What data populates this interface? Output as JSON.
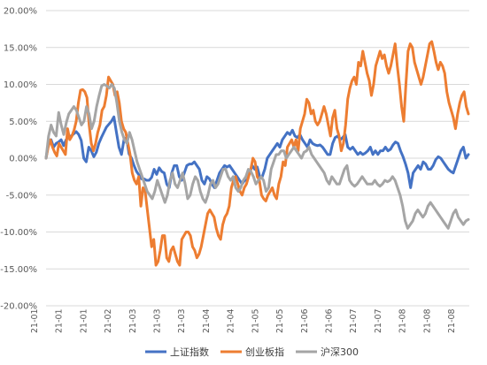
{
  "chart_data": {
    "type": "line",
    "ylim": [
      -20,
      20
    ],
    "y_ticks": [
      20,
      15,
      10,
      5,
      0,
      -5,
      -10,
      -15,
      -20
    ],
    "y_tick_labels": [
      "20.00%",
      "15.00%",
      "10.00%",
      "5.00%",
      "0.00%",
      "-5.00%",
      "-10.00%",
      "-15.00%",
      "-20.00%"
    ],
    "x_tick_labels": [
      "21-01",
      "21-01",
      "21-01",
      "21-02",
      "21-03",
      "21-03",
      "21-03",
      "21-04",
      "21-04",
      "21-05",
      "21-05",
      "21-06",
      "21-06",
      "21-07",
      "21-07",
      "21-08",
      "21-08",
      "21-08"
    ],
    "grid": true,
    "legend_position": "bottom",
    "series": [
      {
        "name": "上证指数",
        "color": "#4472C4",
        "values": [
          0.0,
          2.0,
          2.5,
          1.5,
          2.0,
          2.2,
          2.5,
          1.7,
          2.5,
          3.0,
          3.0,
          3.3,
          3.6,
          3.2,
          2.4,
          0.0,
          -0.5,
          1.5,
          1.0,
          0.2,
          0.8,
          2.0,
          2.8,
          3.5,
          4.2,
          4.6,
          5.0,
          5.6,
          3.5,
          1.5,
          0.5,
          2.5,
          2.8,
          0.6,
          0.0,
          -1.0,
          -1.8,
          -2.3,
          -2.8,
          -2.8,
          -3.0,
          -3.0,
          -2.6,
          -1.5,
          -2.2,
          -1.3,
          -1.8,
          -2.0,
          -3.5,
          -4.0,
          -2.0,
          -1.0,
          -1.0,
          -2.5,
          -3.0,
          -2.0,
          -1.0,
          -0.8,
          -0.8,
          -0.5,
          -1.0,
          -1.5,
          -3.0,
          -3.5,
          -2.5,
          -2.8,
          -3.5,
          -4.0,
          -3.0,
          -2.0,
          -1.5,
          -1.0,
          -1.2,
          -1.0,
          -1.5,
          -2.0,
          -2.5,
          -3.0,
          -3.5,
          -3.0,
          -3.0,
          -2.0,
          -1.0,
          -1.5,
          -1.2,
          -2.5,
          -2.5,
          -1.5,
          0.0,
          0.5,
          1.0,
          1.5,
          2.0,
          1.5,
          2.5,
          3.0,
          3.5,
          3.2,
          3.8,
          3.0,
          2.8,
          3.2,
          2.5,
          2.0,
          1.5,
          2.5,
          2.0,
          1.8,
          1.7,
          1.8,
          1.5,
          1.0,
          0.5,
          0.5,
          2.0,
          2.8,
          3.0,
          2.5,
          2.8,
          3.2,
          1.5,
          1.2,
          1.5,
          1.0,
          0.5,
          0.8,
          0.5,
          0.7,
          1.0,
          1.5,
          0.5,
          1.0,
          0.5,
          1.0,
          1.0,
          1.5,
          1.0,
          1.2,
          1.8,
          2.2,
          2.0,
          1.0,
          0.2,
          -0.8,
          -2.0,
          -4.0,
          -2.0,
          -1.5,
          -1.0,
          -1.5,
          -0.5,
          -0.8,
          -1.5,
          -1.5,
          -1.0,
          -0.2,
          0.2,
          0.0,
          -0.5,
          -1.0,
          -1.5,
          -1.8,
          -2.0,
          -1.0,
          0.0,
          1.0,
          1.5,
          0.0,
          0.5
        ]
      },
      {
        "name": "创业板指",
        "color": "#ED7D31",
        "values": [
          0.0,
          1.5,
          2.5,
          1.5,
          0.8,
          0.3,
          2.0,
          1.5,
          1.0,
          0.5,
          4.0,
          2.5,
          3.0,
          3.8,
          5.0,
          7.5,
          9.2,
          9.3,
          9.0,
          8.2,
          4.5,
          2.0,
          1.0,
          2.0,
          3.5,
          4.5,
          6.5,
          7.0,
          8.5,
          11.0,
          10.5,
          10.0,
          8.5,
          9.0,
          7.5,
          5.0,
          4.0,
          3.5,
          2.0,
          0.5,
          -2.0,
          -3.0,
          -3.5,
          -2.5,
          -6.5,
          -4.0,
          -4.5,
          -7.0,
          -9.5,
          -12.0,
          -11.0,
          -14.5,
          -14.0,
          -12.5,
          -10.5,
          -10.5,
          -13.5,
          -14.0,
          -12.5,
          -12.0,
          -13.0,
          -14.0,
          -14.5,
          -11.0,
          -10.5,
          -10.0,
          -10.0,
          -10.5,
          -12.0,
          -12.5,
          -13.5,
          -13.0,
          -12.0,
          -10.5,
          -9.0,
          -7.5,
          -7.0,
          -7.5,
          -8.0,
          -9.5,
          -10.5,
          -11.0,
          -9.0,
          -8.0,
          -7.5,
          -6.5,
          -4.0,
          -3.0,
          -2.5,
          -3.5,
          -4.5,
          -5.0,
          -4.0,
          -3.5,
          -2.5,
          -1.5,
          0.0,
          -0.5,
          -2.5,
          -3.0,
          -5.0,
          -5.5,
          -5.8,
          -5.0,
          -4.5,
          -4.0,
          -5.0,
          -5.5,
          -3.5,
          -2.5,
          -0.5,
          -1.0,
          1.5,
          2.0,
          2.5,
          1.5,
          2.5,
          1.0,
          4.0,
          5.0,
          6.0,
          8.0,
          7.5,
          6.0,
          6.5,
          5.0,
          4.5,
          5.0,
          6.0,
          7.0,
          6.0,
          4.5,
          3.0,
          5.5,
          6.5,
          4.0,
          3.0,
          1.0,
          2.0,
          4.5,
          8.0,
          9.5,
          10.5,
          11.0,
          10.0,
          13.0,
          12.5,
          14.5,
          13.0,
          11.5,
          10.5,
          8.5,
          10.0,
          12.5,
          13.5,
          14.5,
          13.5,
          14.0,
          12.5,
          11.5,
          12.5,
          14.0,
          15.5,
          12.5,
          10.0,
          7.0,
          5.0,
          10.0,
          14.5,
          15.5,
          15.0,
          13.0,
          12.0,
          11.0,
          10.0,
          11.0,
          12.5,
          14.0,
          15.5,
          15.8,
          14.5,
          13.0,
          12.0,
          13.0,
          12.5,
          11.5,
          9.0,
          7.5,
          6.5,
          5.5,
          4.0,
          6.0,
          7.5,
          8.5,
          9.0,
          7.0,
          6.0
        ]
      },
      {
        "name": "沪深300",
        "color": "#A5A5A5",
        "values": [
          0.0,
          3.0,
          4.5,
          3.5,
          3.0,
          6.2,
          4.5,
          3.2,
          4.8,
          6.0,
          6.5,
          7.0,
          6.5,
          5.5,
          4.5,
          5.0,
          7.0,
          6.0,
          4.0,
          5.0,
          7.0,
          8.5,
          9.8,
          10.0,
          9.8,
          9.5,
          10.0,
          9.5,
          7.5,
          5.0,
          3.5,
          2.5,
          2.0,
          3.5,
          2.5,
          1.0,
          -0.5,
          -1.5,
          -2.5,
          -3.5,
          -4.5,
          -5.0,
          -5.5,
          -4.5,
          -3.0,
          -4.0,
          -5.0,
          -6.0,
          -5.0,
          -3.0,
          -2.0,
          -3.5,
          -4.0,
          -3.0,
          -2.0,
          -3.5,
          -5.5,
          -5.0,
          -3.5,
          -2.5,
          -3.0,
          -4.5,
          -5.5,
          -6.0,
          -5.0,
          -3.5,
          -3.0,
          -4.0,
          -3.5,
          -2.5,
          -1.5,
          -1.5,
          -2.5,
          -3.0,
          -2.5,
          -4.0,
          -4.5,
          -4.0,
          -3.0,
          -2.5,
          -1.5,
          -1.8,
          -2.5,
          -3.5,
          -3.0,
          -2.5,
          -3.0,
          -4.5,
          -4.0,
          -1.5,
          -0.5,
          0.5,
          0.5,
          1.0,
          1.0,
          0.0,
          0.5,
          1.0,
          1.5,
          1.0,
          0.5,
          0.0,
          0.8,
          1.0,
          1.5,
          0.5,
          0.0,
          -0.5,
          -1.0,
          -1.5,
          -2.0,
          -3.0,
          -3.5,
          -2.5,
          -3.0,
          -3.5,
          -3.5,
          -2.5,
          -1.5,
          -1.0,
          -3.0,
          -3.5,
          -3.8,
          -3.5,
          -3.0,
          -2.5,
          -3.0,
          -3.5,
          -3.5,
          -3.5,
          -3.0,
          -3.5,
          -3.8,
          -3.5,
          -3.0,
          -3.2,
          -3.0,
          -2.5,
          -3.0,
          -4.0,
          -5.0,
          -6.5,
          -8.5,
          -9.5,
          -9.0,
          -8.5,
          -7.5,
          -7.0,
          -7.5,
          -8.0,
          -7.5,
          -6.5,
          -6.0,
          -6.5,
          -7.0,
          -7.5,
          -8.0,
          -8.5,
          -9.0,
          -9.5,
          -8.5,
          -7.5,
          -7.0,
          -8.0,
          -8.5,
          -9.0,
          -8.5,
          -8.3
        ]
      }
    ]
  }
}
